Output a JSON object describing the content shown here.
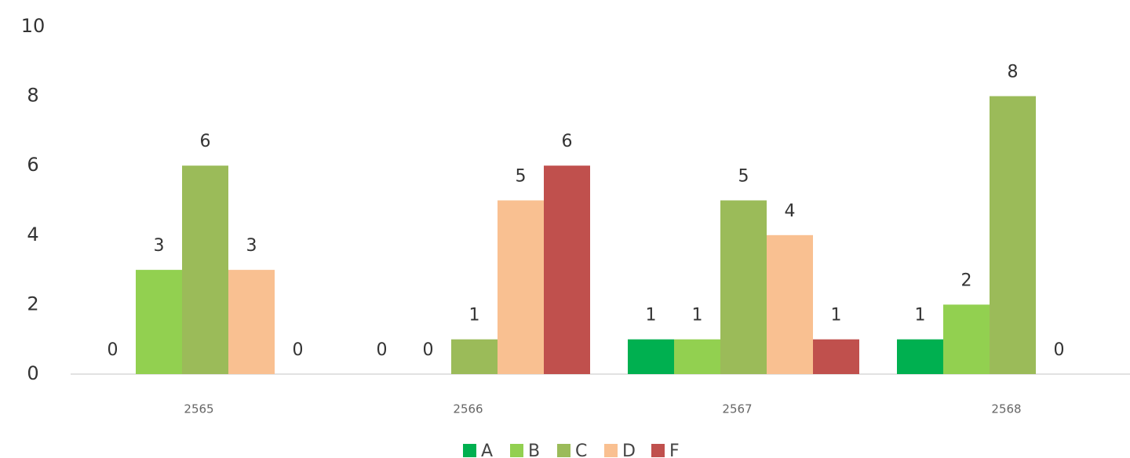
{
  "chart_data": {
    "type": "bar",
    "categories": [
      "2565",
      "2566",
      "2567",
      "2568"
    ],
    "series": [
      {
        "name": "A",
        "color": "#00b050",
        "values": [
          0,
          0,
          1,
          1
        ]
      },
      {
        "name": "B",
        "color": "#92d050",
        "values": [
          3,
          0,
          1,
          2
        ]
      },
      {
        "name": "C",
        "color": "#9bbb59",
        "values": [
          6,
          1,
          5,
          8
        ]
      },
      {
        "name": "D",
        "color": "#f9c091",
        "values": [
          3,
          5,
          4,
          0
        ]
      },
      {
        "name": "F",
        "color": "#c0504d",
        "values": [
          0,
          6,
          1,
          null
        ]
      }
    ],
    "ylim": [
      0,
      10
    ],
    "yticks": [
      0,
      2,
      4,
      6,
      8,
      10
    ],
    "grid": false,
    "legend": "bottom"
  }
}
